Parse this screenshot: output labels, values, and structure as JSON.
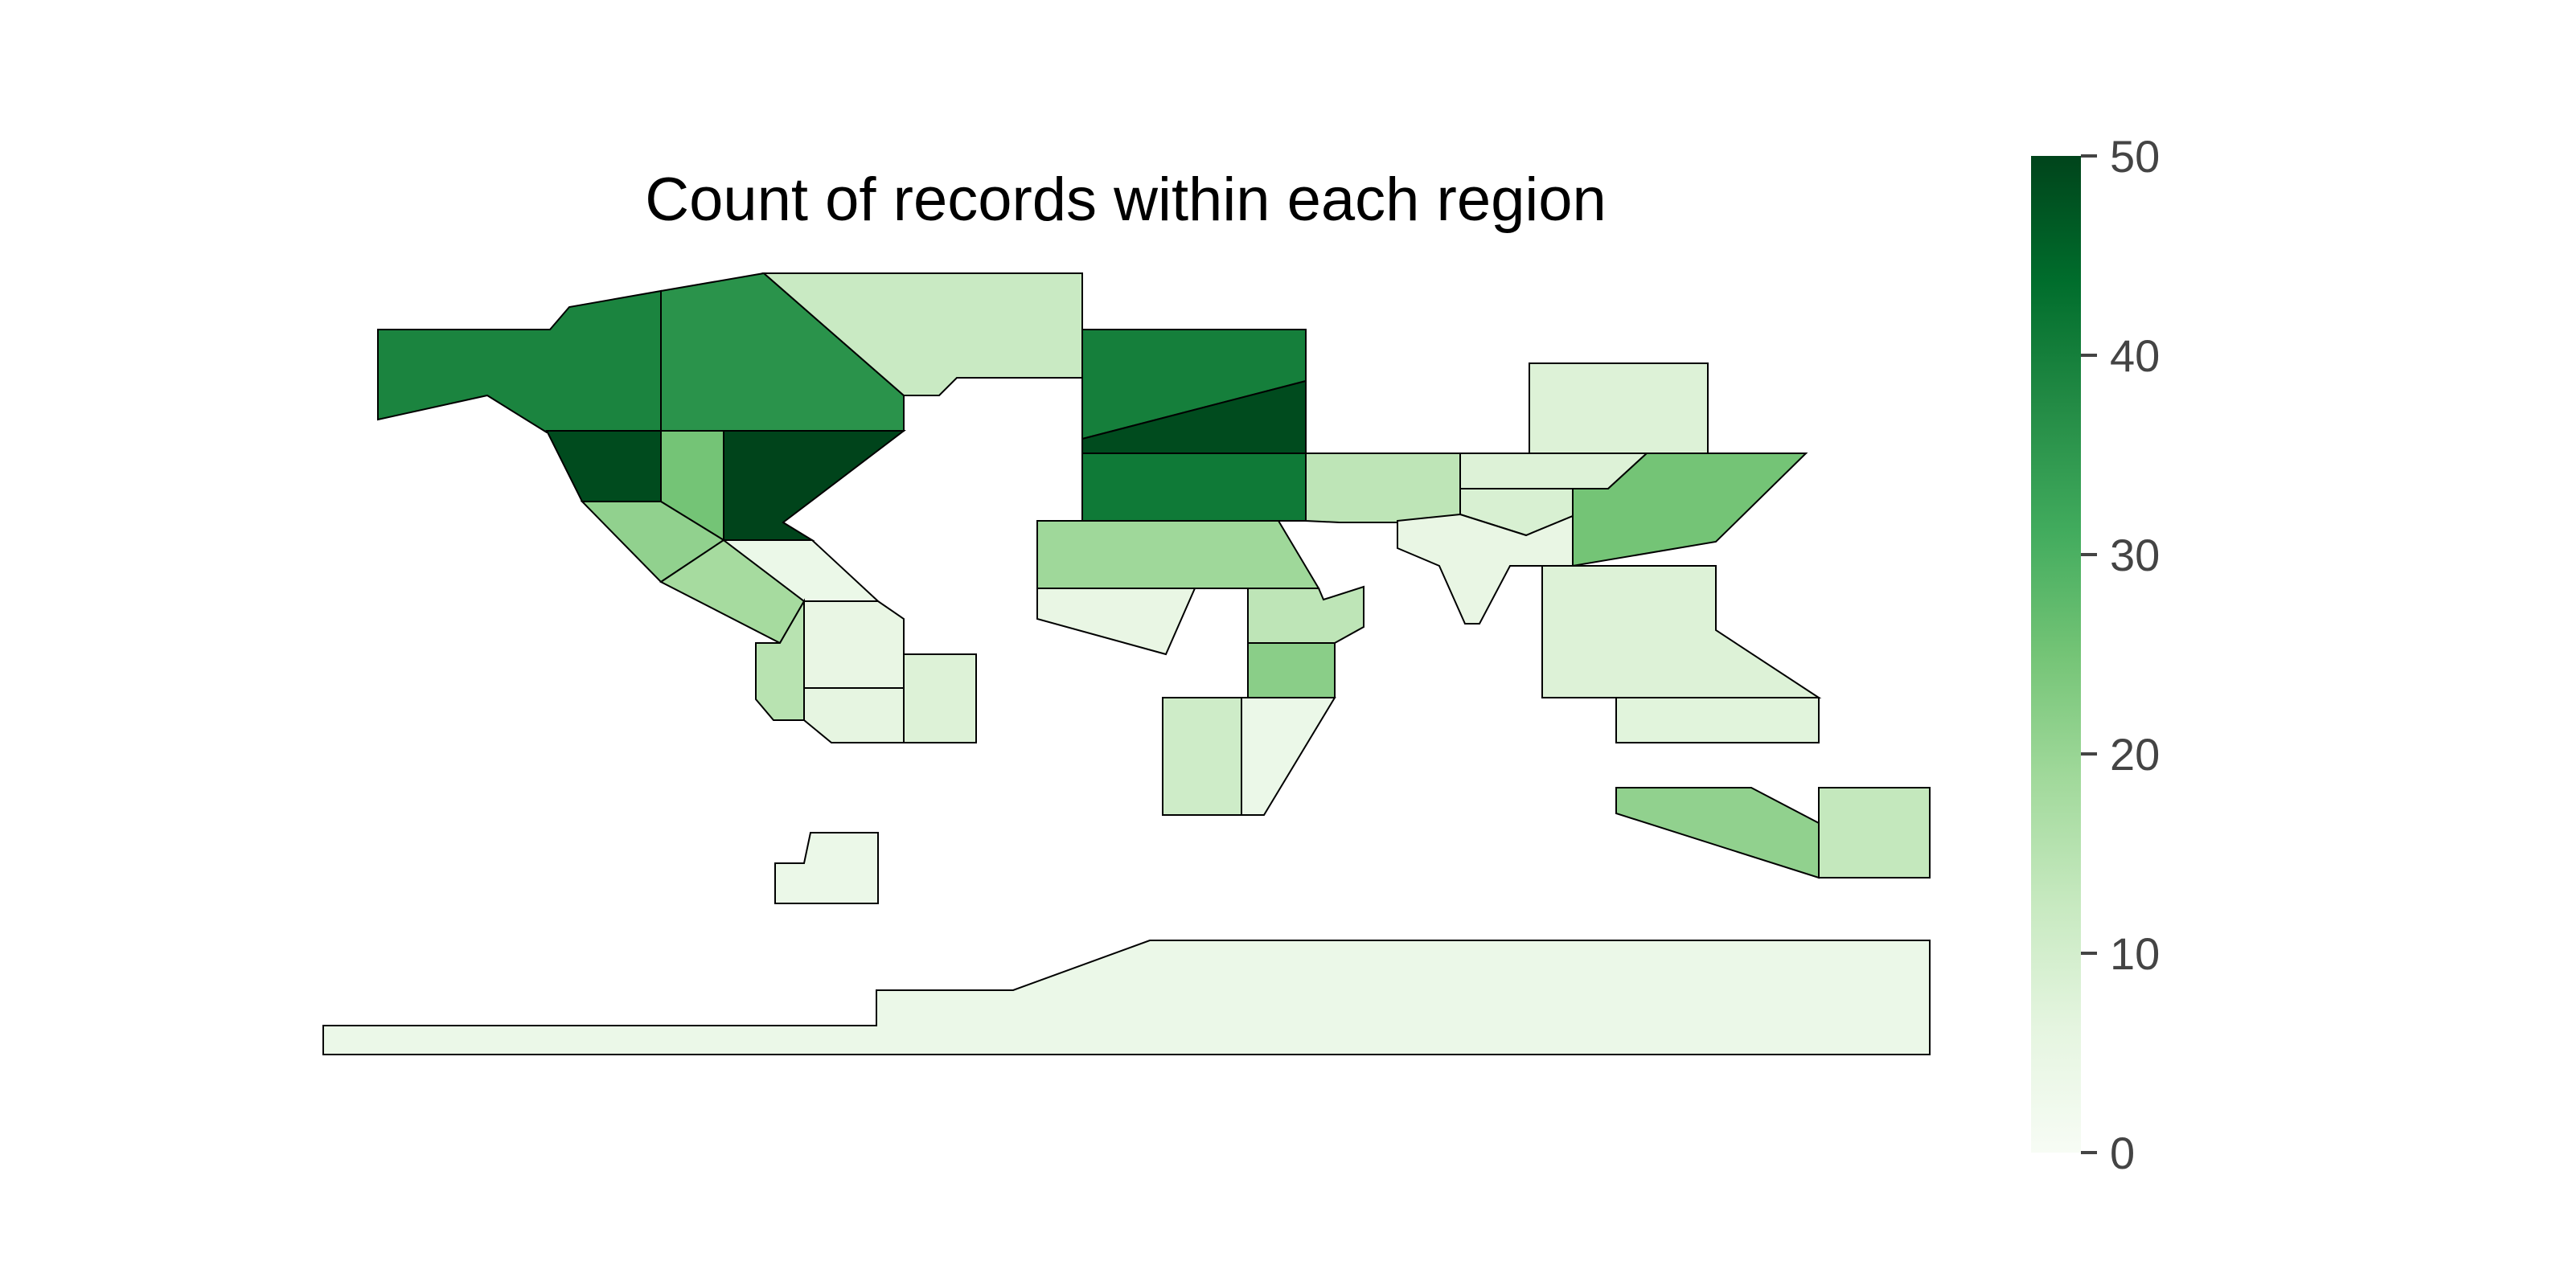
{
  "title": "Count of records within each region",
  "colorbar": {
    "min": 0,
    "max": 50,
    "ticks": [
      {
        "value": 0,
        "label": "0"
      },
      {
        "value": 10,
        "label": "10"
      },
      {
        "value": 20,
        "label": "20"
      },
      {
        "value": 30,
        "label": "30"
      },
      {
        "value": 40,
        "label": "40"
      },
      {
        "value": 50,
        "label": "50"
      }
    ],
    "colormap": "Greens",
    "stops": [
      "#f7fcf5",
      "#e5f5e0",
      "#c7e9c0",
      "#a1d99b",
      "#74c476",
      "#41ab5d",
      "#238b45",
      "#006d2c",
      "#00441b"
    ]
  },
  "chart_data": {
    "type": "choropleth",
    "metric": "count of records",
    "legend_position": "right",
    "regions": [
      {
        "id": "region-nw-alaska",
        "value": 39
      },
      {
        "id": "region-n-canada-west",
        "value": 36
      },
      {
        "id": "region-greenland",
        "value": 12
      },
      {
        "id": "region-w-canada",
        "value": 49
      },
      {
        "id": "region-c-canada",
        "value": 25
      },
      {
        "id": "region-e-canada",
        "value": 50
      },
      {
        "id": "region-w-usa",
        "value": 21
      },
      {
        "id": "region-c-usa",
        "value": 18
      },
      {
        "id": "region-e-usa",
        "value": 4
      },
      {
        "id": "region-c-america",
        "value": 15
      },
      {
        "id": "region-caribbean-north",
        "value": 5
      },
      {
        "id": "region-caribbean-south",
        "value": 6
      },
      {
        "id": "region-n-south-america-east",
        "value": 8
      },
      {
        "id": "region-s-south-america",
        "value": 4
      },
      {
        "id": "region-n-europe-top",
        "value": 40
      },
      {
        "id": "region-n-europe-band",
        "value": 49
      },
      {
        "id": "region-c-europe",
        "value": 41
      },
      {
        "id": "region-mediterranean",
        "value": 19
      },
      {
        "id": "region-sahara",
        "value": 5
      },
      {
        "id": "region-w-africa",
        "value": 11
      },
      {
        "id": "region-c-africa",
        "value": 22
      },
      {
        "id": "region-e-africa-w",
        "value": 14
      },
      {
        "id": "region-s-africa",
        "value": 4
      },
      {
        "id": "region-w-asia",
        "value": 14
      },
      {
        "id": "region-c-asia-north",
        "value": 8
      },
      {
        "id": "region-c-asia-mid",
        "value": 9
      },
      {
        "id": "region-s-asia",
        "value": 5
      },
      {
        "id": "region-n-asia",
        "value": 8
      },
      {
        "id": "region-e-asia",
        "value": 25
      },
      {
        "id": "region-se-asia",
        "value": 8
      },
      {
        "id": "region-indonesia",
        "value": 7
      },
      {
        "id": "region-australia-w",
        "value": 21
      },
      {
        "id": "region-australia-e",
        "value": 13
      },
      {
        "id": "region-antarctica",
        "value": 4
      }
    ]
  }
}
